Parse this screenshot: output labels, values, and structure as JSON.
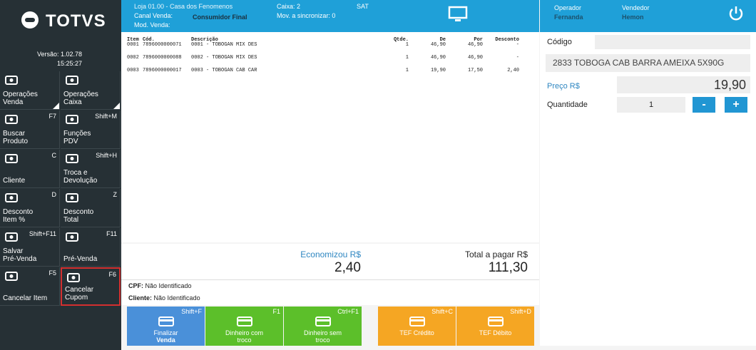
{
  "sidebar": {
    "logo": "TOTVS",
    "version": "Versão: 1.02.78",
    "time": "15:25:27",
    "buttons": [
      {
        "label": [
          "Operações",
          "Venda"
        ]
      },
      {
        "label": [
          "Operações",
          "Caixa"
        ]
      },
      {
        "label": [
          "Buscar",
          "Produto"
        ],
        "shortcut": "F7"
      },
      {
        "label": [
          "Funções",
          "PDV"
        ],
        "shortcut": "Shift+M"
      },
      {
        "label": [
          "Cliente"
        ],
        "shortcut": "C"
      },
      {
        "label": [
          "Troca e",
          "Devolução"
        ],
        "shortcut": "Shift+H"
      },
      {
        "label": [
          "Desconto",
          "Item %"
        ],
        "shortcut": "D"
      },
      {
        "label": [
          "Desconto",
          "Total"
        ],
        "shortcut": "Z"
      },
      {
        "label": [
          "Salvar",
          "Pré-Venda"
        ],
        "shortcut": "Shift+F11"
      },
      {
        "label": [
          "Pré-Venda"
        ],
        "shortcut": "F11"
      },
      {
        "label": [
          "Cancelar Item"
        ],
        "shortcut": "F5"
      },
      {
        "label": [
          "Cancelar",
          "Cupom"
        ],
        "shortcut": "F6"
      }
    ]
  },
  "header": {
    "store": "Loja 01.00 - Casa dos Fenomenos",
    "channel_label": "Canal Venda:",
    "channel": "Consumidor Final",
    "mode_label": "Mod. Venda:",
    "register": "Caixa: 2",
    "sync": "Mov. a sincronizar: 0",
    "sat": "SAT",
    "operator_label": "Operador",
    "operator": "Fernanda",
    "seller_label": "Vendedor",
    "seller": "Hemon"
  },
  "table": {
    "columns": [
      "Item",
      "Cód.",
      "Descrição",
      "Qtde.",
      "De",
      "Por",
      "Desconto"
    ],
    "rows": [
      [
        "0001",
        "7896000000071",
        "0001 - TOBOGAN MIX DES",
        "1",
        "46,90",
        "46,90",
        "-"
      ],
      [
        "0002",
        "7896000000088",
        "0002 - TOBOGAN MIX DES",
        "1",
        "46,90",
        "46,90",
        "-"
      ],
      [
        "0003",
        "7896000000017",
        "0003 - TOBOGAN CAB CAR",
        "1",
        "19,90",
        "17,50",
        "2,40"
      ]
    ]
  },
  "totals": {
    "saved_label": "Economizou R$",
    "saved": "2,40",
    "total_label": "Total a pagar R$",
    "total": "111,30"
  },
  "customer": {
    "cpf_label": "CPF:",
    "cpf": "Não Identificado",
    "client_label": "Cliente:",
    "client": "Não Identificado"
  },
  "payments": [
    {
      "label": [
        "Finalizar",
        "Venda"
      ],
      "shortcut": "Shift+F"
    },
    {
      "label": [
        "Dinheiro com",
        "troco"
      ],
      "shortcut": "F1"
    },
    {
      "label": [
        "Dinheiro sem",
        "troco"
      ],
      "shortcut": "Ctrl+F1"
    },
    {
      "label": [
        "TEF Crédito"
      ],
      "shortcut": "Shift+C"
    },
    {
      "label": [
        "TEF Débito"
      ],
      "shortcut": "Shift+D"
    }
  ],
  "product": {
    "code_label": "Código",
    "description": "2833 TOBOGA CAB BARRA AMEIXA 5X90G",
    "price_label": "Preço R$",
    "price": "19,90",
    "qty_label": "Quantidade",
    "qty": "1",
    "minus": "-",
    "plus": "+"
  }
}
